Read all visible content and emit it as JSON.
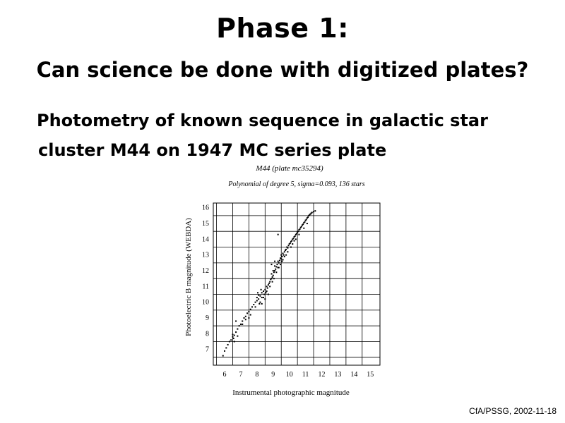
{
  "slide": {
    "title": "Phase 1:",
    "subtitle": "Can science be done with digitized plates?",
    "body_line1": "Photometry of known sequence in galactic star",
    "body_line2": "cluster M44 on 1947 MC series plate",
    "footer": "CfA/PSSG, 2002-11-18"
  },
  "chart_data": {
    "type": "scatter",
    "title": "M44 (plate mc35294)",
    "subtitle": "Polynomial of degree 5, sigma=0.093, 136 stars",
    "xlabel": "Instrumental photographic magnitude",
    "ylabel": "Photoelectric B magnitude (WEBDA)",
    "xlim": [
      5.3,
      15.6
    ],
    "ylim": [
      6.0,
      16.3
    ],
    "xticks": [
      6,
      7,
      8,
      9,
      10,
      11,
      12,
      13,
      14,
      15
    ],
    "yticks": [
      7,
      8,
      9,
      10,
      11,
      12,
      13,
      14,
      15,
      16
    ],
    "grid": true,
    "color": "#000000",
    "points": [
      [
        5.9,
        6.6
      ],
      [
        6.0,
        6.9
      ],
      [
        6.1,
        7.1
      ],
      [
        6.2,
        7.3
      ],
      [
        6.3,
        7.5
      ],
      [
        6.4,
        7.6
      ],
      [
        6.5,
        7.8
      ],
      [
        6.5,
        7.95
      ],
      [
        6.55,
        7.7
      ],
      [
        6.6,
        7.9
      ],
      [
        6.6,
        7.5
      ],
      [
        6.7,
        8.1
      ],
      [
        6.8,
        7.85
      ],
      [
        6.8,
        8.3
      ],
      [
        6.9,
        8.5
      ],
      [
        7.0,
        8.6
      ],
      [
        7.1,
        8.8
      ],
      [
        7.2,
        9.0
      ],
      [
        7.3,
        9.1
      ],
      [
        7.4,
        9.3
      ],
      [
        7.5,
        9.4
      ],
      [
        7.6,
        9.55
      ],
      [
        7.7,
        9.7
      ],
      [
        7.8,
        9.85
      ],
      [
        7.9,
        10.0
      ],
      [
        8.0,
        10.1
      ],
      [
        8.0,
        10.3
      ],
      [
        8.1,
        10.2
      ],
      [
        8.1,
        10.45
      ],
      [
        8.2,
        10.0
      ],
      [
        8.2,
        10.4
      ],
      [
        8.3,
        10.6
      ],
      [
        8.3,
        10.3
      ],
      [
        8.4,
        10.7
      ],
      [
        8.45,
        10.5
      ],
      [
        8.5,
        10.8
      ],
      [
        8.55,
        10.6
      ],
      [
        8.6,
        11.0
      ],
      [
        8.65,
        10.9
      ],
      [
        8.7,
        11.1
      ],
      [
        8.75,
        11.2
      ],
      [
        8.8,
        11.3
      ],
      [
        8.85,
        11.45
      ],
      [
        8.9,
        11.5
      ],
      [
        8.9,
        11.8
      ],
      [
        8.95,
        11.6
      ],
      [
        9.0,
        11.7
      ],
      [
        9.0,
        12.0
      ],
      [
        9.05,
        11.9
      ],
      [
        9.1,
        12.0
      ],
      [
        9.1,
        12.3
      ],
      [
        9.15,
        12.1
      ],
      [
        9.2,
        12.25
      ],
      [
        9.25,
        12.4
      ],
      [
        9.3,
        12.2
      ],
      [
        9.3,
        12.6
      ],
      [
        9.35,
        12.5
      ],
      [
        9.4,
        12.65
      ],
      [
        9.45,
        12.8
      ],
      [
        9.5,
        12.75
      ],
      [
        9.5,
        13.0
      ],
      [
        9.55,
        12.9
      ],
      [
        9.6,
        13.1
      ],
      [
        9.65,
        13.0
      ],
      [
        9.7,
        13.2
      ],
      [
        9.75,
        13.3
      ],
      [
        9.8,
        13.35
      ],
      [
        9.85,
        13.5
      ],
      [
        9.9,
        13.45
      ],
      [
        9.95,
        13.6
      ],
      [
        10.0,
        13.7
      ],
      [
        10.05,
        13.75
      ],
      [
        10.1,
        13.85
      ],
      [
        10.15,
        13.9
      ],
      [
        10.2,
        14.0
      ],
      [
        10.25,
        14.05
      ],
      [
        10.3,
        14.15
      ],
      [
        10.35,
        14.2
      ],
      [
        10.4,
        14.3
      ],
      [
        10.45,
        14.35
      ],
      [
        10.5,
        14.45
      ],
      [
        10.55,
        14.5
      ],
      [
        10.6,
        14.6
      ],
      [
        10.65,
        14.65
      ],
      [
        10.7,
        14.75
      ],
      [
        10.75,
        14.8
      ],
      [
        10.8,
        14.9
      ],
      [
        10.85,
        14.95
      ],
      [
        10.9,
        15.05
      ],
      [
        10.95,
        15.1
      ],
      [
        11.0,
        15.2
      ],
      [
        11.05,
        15.25
      ],
      [
        11.1,
        15.35
      ],
      [
        11.15,
        15.4
      ],
      [
        11.2,
        15.5
      ],
      [
        11.25,
        15.55
      ],
      [
        11.3,
        15.6
      ],
      [
        11.35,
        15.65
      ],
      [
        11.4,
        15.7
      ],
      [
        11.5,
        15.75
      ],
      [
        11.6,
        15.8
      ],
      [
        9.3,
        14.3
      ],
      [
        9.1,
        12.6
      ],
      [
        8.9,
        12.4
      ],
      [
        7.5,
        9.0
      ],
      [
        8.3,
        9.9
      ],
      [
        8.5,
        10.2
      ],
      [
        8.7,
        10.5
      ],
      [
        9.6,
        12.7
      ],
      [
        9.8,
        13.0
      ],
      [
        10.2,
        13.7
      ],
      [
        10.4,
        14.0
      ],
      [
        10.6,
        14.3
      ],
      [
        10.9,
        14.7
      ],
      [
        11.1,
        15.0
      ],
      [
        6.7,
        8.8
      ],
      [
        7.1,
        8.6
      ],
      [
        7.3,
        8.9
      ],
      [
        7.6,
        9.2
      ],
      [
        7.9,
        9.7
      ],
      [
        8.05,
        10.6
      ],
      [
        8.15,
        9.9
      ],
      [
        8.25,
        10.8
      ],
      [
        8.4,
        10.3
      ],
      [
        8.6,
        10.7
      ],
      [
        8.8,
        11.0
      ],
      [
        8.95,
        11.3
      ],
      [
        9.05,
        11.5
      ],
      [
        9.2,
        11.9
      ],
      [
        9.35,
        12.2
      ],
      [
        9.45,
        12.4
      ],
      [
        9.55,
        12.6
      ],
      [
        9.7,
        12.9
      ],
      [
        9.9,
        13.2
      ],
      [
        10.1,
        13.5
      ],
      [
        10.3,
        13.9
      ]
    ]
  }
}
